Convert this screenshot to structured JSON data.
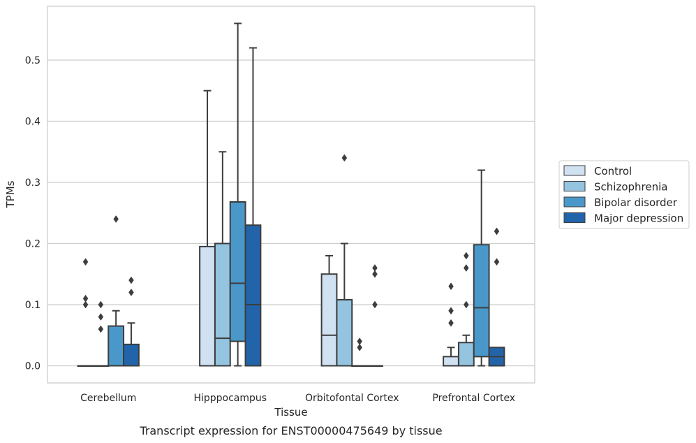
{
  "chart_data": {
    "type": "box",
    "xlabel": "Tissue",
    "ylabel": "TPMs",
    "caption": "Transcript expression for ENST00000475649 by tissue",
    "ylim": [
      -0.028,
      0.588
    ],
    "yticks": [
      0.0,
      0.1,
      0.2,
      0.3,
      0.4,
      0.5
    ],
    "ytick_labels": [
      "0.0",
      "0.1",
      "0.2",
      "0.3",
      "0.4",
      "0.5"
    ],
    "grid": "horizontal",
    "legend_position": "outside-right",
    "categories": [
      "Cerebellum",
      "Hipppocampus",
      "Orbitofontal Cortex",
      "Prefrontal Cortex"
    ],
    "series": [
      {
        "name": "Control",
        "color": "#d0e1f2",
        "boxes": [
          {
            "q1": 0,
            "median": 0,
            "q3": 0,
            "whislo": 0,
            "whishi": 0,
            "fliers": [
              0.1,
              0.11,
              0.17
            ]
          },
          {
            "q1": 0,
            "median": 0,
            "q3": 0.195,
            "whislo": 0,
            "whishi": 0.45,
            "fliers": []
          },
          {
            "q1": 0,
            "median": 0.05,
            "q3": 0.15,
            "whislo": 0,
            "whishi": 0.18,
            "fliers": []
          },
          {
            "q1": 0,
            "median": 0,
            "q3": 0.015,
            "whislo": 0,
            "whishi": 0.03,
            "fliers": [
              0.07,
              0.09,
              0.13
            ]
          }
        ]
      },
      {
        "name": "Schizophrenia",
        "color": "#94c4df",
        "boxes": [
          {
            "q1": 0,
            "median": 0,
            "q3": 0,
            "whislo": 0,
            "whishi": 0,
            "fliers": [
              0.06,
              0.08,
              0.1
            ]
          },
          {
            "q1": 0,
            "median": 0.045,
            "q3": 0.2,
            "whislo": 0,
            "whishi": 0.35,
            "fliers": []
          },
          {
            "q1": 0,
            "median": 0,
            "q3": 0.108,
            "whislo": 0,
            "whishi": 0.2,
            "fliers": [
              0.34
            ]
          },
          {
            "q1": 0,
            "median": 0,
            "q3": 0.038,
            "whislo": 0,
            "whishi": 0.05,
            "fliers": [
              0.1,
              0.16,
              0.18
            ]
          }
        ]
      },
      {
        "name": "Bipolar disorder",
        "color": "#4a98c9",
        "boxes": [
          {
            "q1": 0,
            "median": 0,
            "q3": 0.065,
            "whislo": 0,
            "whishi": 0.09,
            "fliers": [
              0.24
            ]
          },
          {
            "q1": 0.04,
            "median": 0.135,
            "q3": 0.268,
            "whislo": 0,
            "whishi": 0.56,
            "fliers": []
          },
          {
            "q1": 0,
            "median": 0,
            "q3": 0,
            "whislo": 0,
            "whishi": 0,
            "fliers": [
              0.03,
              0.04
            ]
          },
          {
            "q1": 0.015,
            "median": 0.095,
            "q3": 0.198,
            "whislo": 0,
            "whishi": 0.32,
            "fliers": []
          }
        ]
      },
      {
        "name": "Major depression",
        "color": "#2264aa",
        "boxes": [
          {
            "q1": 0,
            "median": 0,
            "q3": 0.035,
            "whislo": 0,
            "whishi": 0.07,
            "fliers": [
              0.12,
              0.14
            ]
          },
          {
            "q1": 0,
            "median": 0.1,
            "q3": 0.23,
            "whislo": 0,
            "whishi": 0.52,
            "fliers": []
          },
          {
            "q1": 0,
            "median": 0,
            "q3": 0,
            "whislo": 0,
            "whishi": 0,
            "fliers": [
              0.1,
              0.15,
              0.16
            ]
          },
          {
            "q1": 0,
            "median": 0.015,
            "q3": 0.03,
            "whislo": 0,
            "whishi": 0.03,
            "fliers": [
              0.17,
              0.22
            ]
          }
        ]
      }
    ]
  }
}
